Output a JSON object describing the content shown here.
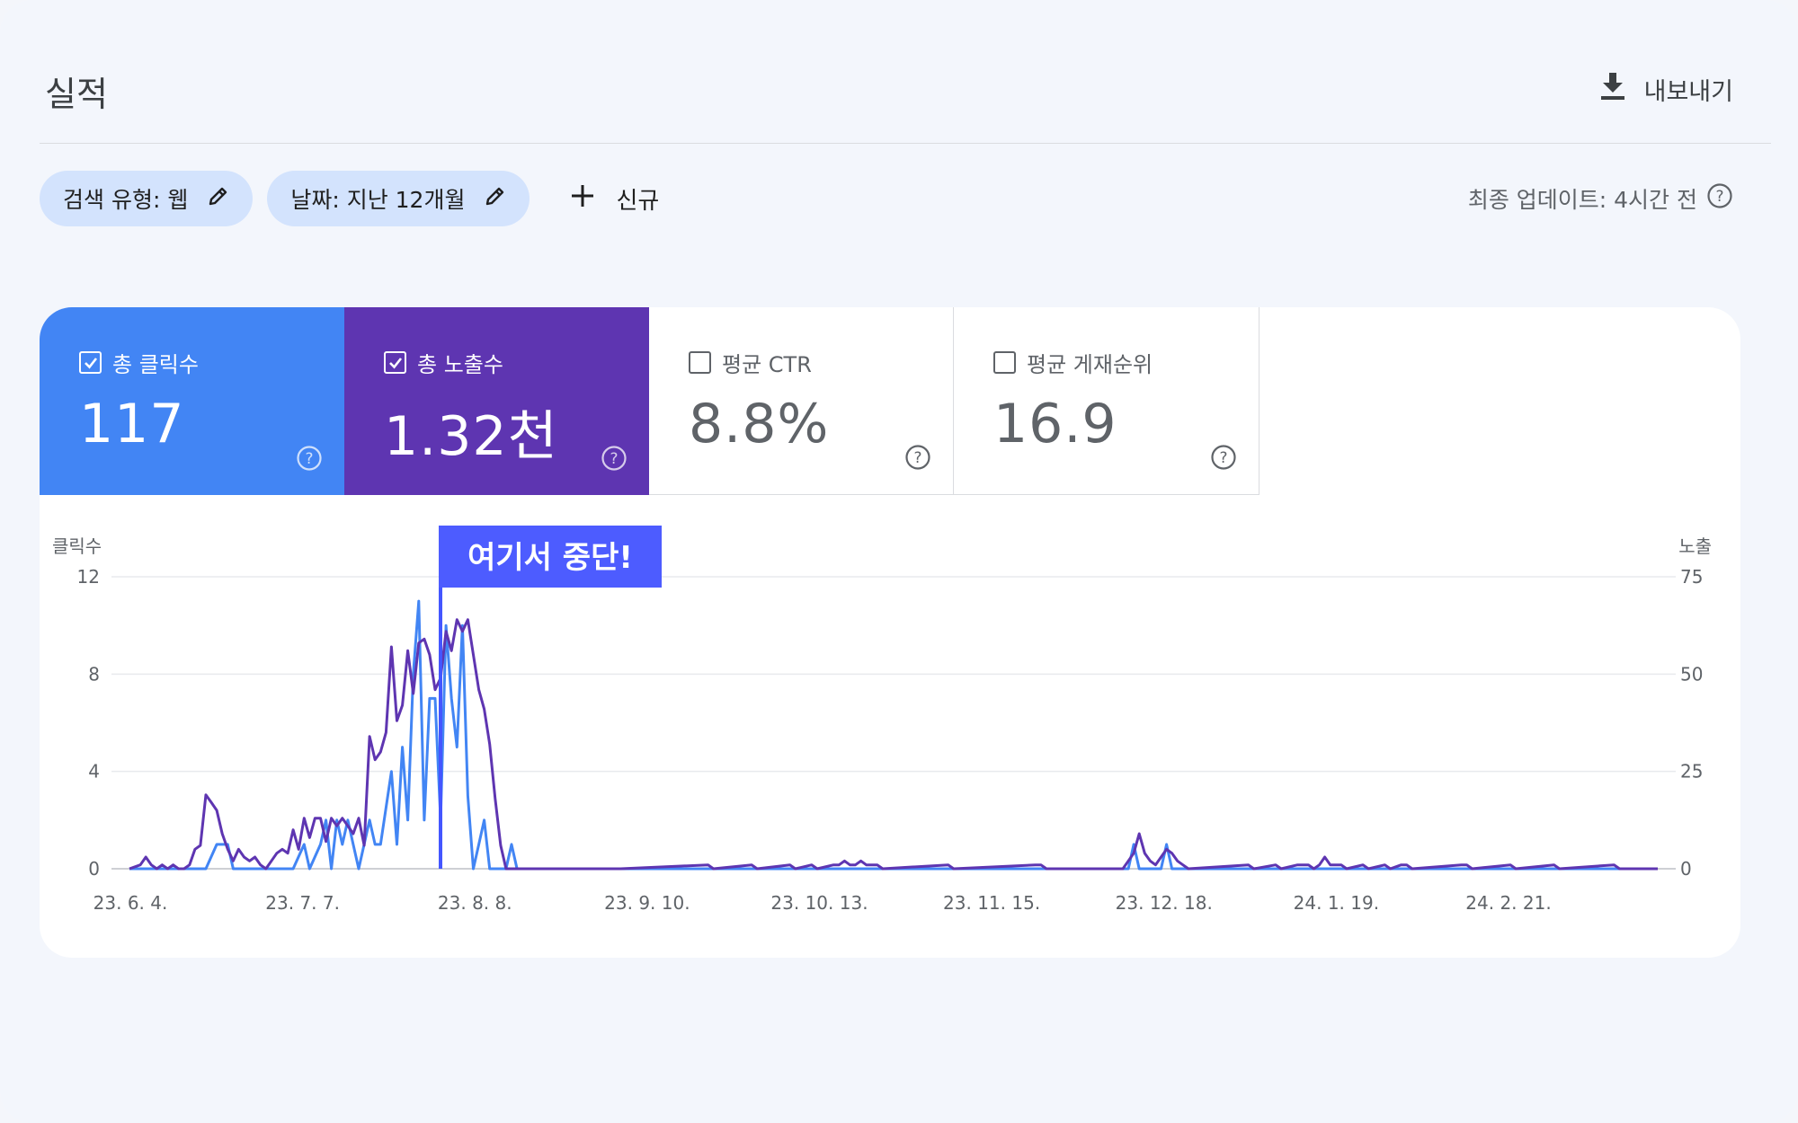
{
  "header": {
    "title": "실적",
    "export_label": "내보내기"
  },
  "filters": {
    "search_type": "검색 유형: 웹",
    "date": "날짜: 지난 12개월",
    "new_label": "신규"
  },
  "last_update": "최종 업데이트: 4시간 전",
  "metrics": [
    {
      "label": "총 클릭수",
      "value": "117",
      "checked": true,
      "color": "#4285f4"
    },
    {
      "label": "총 노출수",
      "value": "1.32천",
      "checked": true,
      "color": "#5e35b1"
    },
    {
      "label": "평균 CTR",
      "value": "8.8%",
      "checked": false
    },
    {
      "label": "평균 게재순위",
      "value": "16.9",
      "checked": false
    }
  ],
  "annotation": "여기서 중단!",
  "chart_data": {
    "type": "line",
    "left_axis_label": "클릭수",
    "right_axis_label": "노출",
    "left_ticks": [
      "12",
      "8",
      "4",
      "0"
    ],
    "right_ticks": [
      "75",
      "50",
      "25",
      "0"
    ],
    "left_ylim": [
      0,
      12
    ],
    "right_ylim": [
      0,
      75
    ],
    "x_tick_labels": [
      "23. 6. 4.",
      "23. 7. 7.",
      "23. 8. 8.",
      "23. 9. 10.",
      "23. 10. 13.",
      "23. 11. 15.",
      "23. 12. 18.",
      "24. 1. 19.",
      "24. 2. 21."
    ],
    "series": [
      {
        "name": "총 클릭수",
        "color": "#4285f4",
        "axis": "left",
        "points": [
          [
            0,
            0
          ],
          [
            14,
            0
          ],
          [
            16,
            1
          ],
          [
            18,
            1
          ],
          [
            19,
            0
          ],
          [
            22,
            0
          ],
          [
            23,
            0
          ],
          [
            30,
            0
          ],
          [
            32,
            1
          ],
          [
            33,
            0
          ],
          [
            35,
            1
          ],
          [
            36,
            2
          ],
          [
            37,
            0
          ],
          [
            38,
            2
          ],
          [
            39,
            1
          ],
          [
            40,
            2
          ],
          [
            41,
            1
          ],
          [
            42,
            0
          ],
          [
            44,
            2
          ],
          [
            45,
            1
          ],
          [
            46,
            1
          ],
          [
            48,
            4
          ],
          [
            49,
            1
          ],
          [
            50,
            5
          ],
          [
            51,
            2
          ],
          [
            52,
            8
          ],
          [
            53,
            11
          ],
          [
            54,
            2
          ],
          [
            55,
            7
          ],
          [
            56,
            7
          ],
          [
            57,
            2
          ],
          [
            58,
            10
          ],
          [
            59,
            7
          ],
          [
            60,
            5
          ],
          [
            61,
            10
          ],
          [
            62,
            3
          ],
          [
            63,
            0
          ],
          [
            64,
            1
          ],
          [
            65,
            2
          ],
          [
            66,
            0
          ],
          [
            68,
            0
          ],
          [
            69,
            0
          ],
          [
            70,
            1
          ],
          [
            71,
            0
          ],
          [
            183,
            0
          ],
          [
            184,
            1
          ],
          [
            185,
            0
          ],
          [
            189,
            0
          ],
          [
            190,
            1
          ],
          [
            191,
            0
          ],
          [
            280,
            0
          ]
        ]
      },
      {
        "name": "총 노출수",
        "color": "#5e35b1",
        "axis": "right",
        "points": [
          [
            0,
            0
          ],
          [
            2,
            1
          ],
          [
            3,
            3
          ],
          [
            4,
            1
          ],
          [
            5,
            0
          ],
          [
            6,
            1
          ],
          [
            7,
            0
          ],
          [
            8,
            1
          ],
          [
            9,
            0
          ],
          [
            10,
            0
          ],
          [
            11,
            1
          ],
          [
            12,
            5
          ],
          [
            13,
            6
          ],
          [
            14,
            19
          ],
          [
            15,
            17
          ],
          [
            16,
            15
          ],
          [
            17,
            9
          ],
          [
            18,
            5
          ],
          [
            19,
            2
          ],
          [
            20,
            5
          ],
          [
            21,
            3
          ],
          [
            22,
            2
          ],
          [
            23,
            3
          ],
          [
            24,
            1
          ],
          [
            25,
            0
          ],
          [
            26,
            2
          ],
          [
            27,
            4
          ],
          [
            28,
            5
          ],
          [
            29,
            4
          ],
          [
            30,
            10
          ],
          [
            31,
            5
          ],
          [
            32,
            13
          ],
          [
            33,
            8
          ],
          [
            34,
            13
          ],
          [
            35,
            13
          ],
          [
            36,
            7
          ],
          [
            37,
            13
          ],
          [
            38,
            11
          ],
          [
            39,
            13
          ],
          [
            40,
            11
          ],
          [
            41,
            9
          ],
          [
            42,
            13
          ],
          [
            43,
            6
          ],
          [
            44,
            34
          ],
          [
            45,
            28
          ],
          [
            46,
            30
          ],
          [
            47,
            35
          ],
          [
            48,
            57
          ],
          [
            49,
            38
          ],
          [
            50,
            42
          ],
          [
            51,
            56
          ],
          [
            52,
            45
          ],
          [
            53,
            58
          ],
          [
            54,
            59
          ],
          [
            55,
            55
          ],
          [
            56,
            46
          ],
          [
            57,
            49
          ],
          [
            58,
            61
          ],
          [
            59,
            56
          ],
          [
            60,
            64
          ],
          [
            61,
            61
          ],
          [
            62,
            64
          ],
          [
            63,
            55
          ],
          [
            64,
            46
          ],
          [
            65,
            41
          ],
          [
            66,
            32
          ],
          [
            67,
            18
          ],
          [
            68,
            6
          ],
          [
            69,
            0
          ],
          [
            90,
            0
          ],
          [
            106,
            1
          ],
          [
            107,
            0
          ],
          [
            114,
            1
          ],
          [
            115,
            0
          ],
          [
            121,
            1
          ],
          [
            122,
            0
          ],
          [
            125,
            1
          ],
          [
            126,
            0
          ],
          [
            129,
            1
          ],
          [
            130,
            1
          ],
          [
            131,
            2
          ],
          [
            132,
            1
          ],
          [
            133,
            1
          ],
          [
            134,
            2
          ],
          [
            135,
            1
          ],
          [
            136,
            1
          ],
          [
            137,
            1
          ],
          [
            138,
            0
          ],
          [
            150,
            1
          ],
          [
            151,
            0
          ],
          [
            166,
            1
          ],
          [
            167,
            1
          ],
          [
            168,
            0
          ],
          [
            169,
            0
          ],
          [
            170,
            0
          ],
          [
            171,
            0
          ],
          [
            172,
            0
          ],
          [
            173,
            0
          ],
          [
            174,
            0
          ],
          [
            175,
            0
          ],
          [
            176,
            0
          ],
          [
            177,
            0
          ],
          [
            178,
            0
          ],
          [
            179,
            0
          ],
          [
            180,
            0
          ],
          [
            181,
            0
          ],
          [
            182,
            0
          ],
          [
            183,
            2
          ],
          [
            184,
            4
          ],
          [
            185,
            9
          ],
          [
            186,
            4
          ],
          [
            187,
            2
          ],
          [
            188,
            1
          ],
          [
            189,
            3
          ],
          [
            190,
            5
          ],
          [
            191,
            4
          ],
          [
            192,
            2
          ],
          [
            193,
            1
          ],
          [
            194,
            0
          ],
          [
            205,
            1
          ],
          [
            206,
            0
          ],
          [
            210,
            1
          ],
          [
            211,
            0
          ],
          [
            214,
            1
          ],
          [
            215,
            1
          ],
          [
            216,
            1
          ],
          [
            217,
            0
          ],
          [
            218,
            1
          ],
          [
            219,
            3
          ],
          [
            220,
            1
          ],
          [
            221,
            1
          ],
          [
            222,
            1
          ],
          [
            223,
            0
          ],
          [
            226,
            1
          ],
          [
            227,
            0
          ],
          [
            230,
            1
          ],
          [
            231,
            0
          ],
          [
            233,
            1
          ],
          [
            234,
            1
          ],
          [
            235,
            0
          ],
          [
            244,
            1
          ],
          [
            245,
            1
          ],
          [
            246,
            0
          ],
          [
            253,
            1
          ],
          [
            254,
            0
          ],
          [
            261,
            1
          ],
          [
            262,
            0
          ],
          [
            272,
            1
          ],
          [
            273,
            0
          ],
          [
            280,
            0
          ]
        ]
      }
    ]
  }
}
